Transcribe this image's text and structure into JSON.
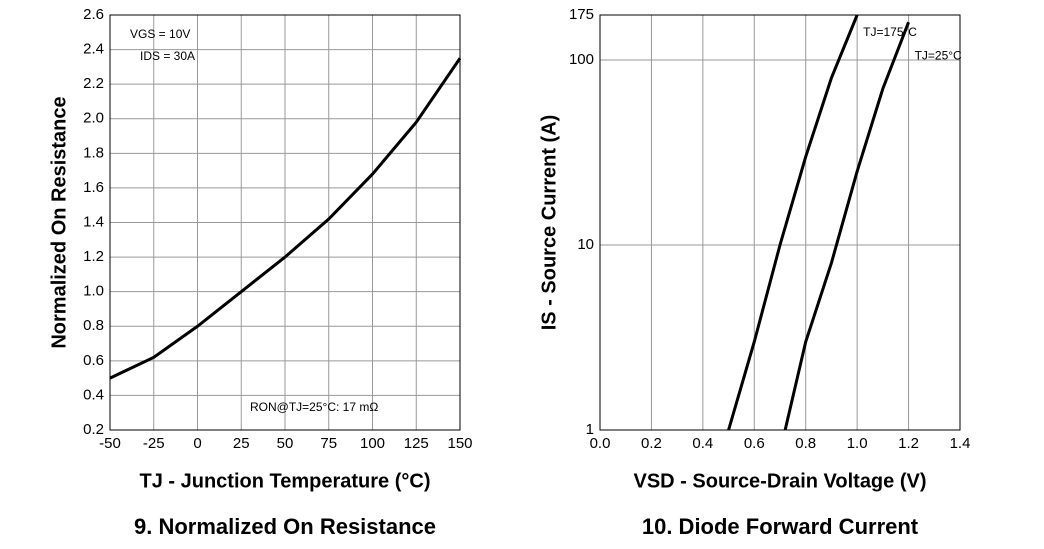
{
  "chart_data": [
    {
      "type": "line",
      "title": "9. Normalized On Resistance",
      "x_label": "TJ - Junction Temperature (°C)",
      "y_label": "Normalized On Resistance",
      "x": [
        -50,
        -25,
        0,
        25,
        50,
        75,
        100,
        125,
        150
      ],
      "series": [
        {
          "color": "#000000",
          "values": [
            0.5,
            0.62,
            0.8,
            1.0,
            1.2,
            1.42,
            1.68,
            1.98,
            2.35
          ]
        }
      ],
      "xlim": [
        -50,
        150
      ],
      "xticks": [
        -50,
        -25,
        0,
        25,
        50,
        75,
        100,
        125,
        150
      ],
      "ylim": [
        0.2,
        2.6
      ],
      "yticks": [
        0.2,
        0.4,
        0.6,
        0.8,
        {
          "value": 1.0,
          "label": "1.0"
        },
        1.2,
        1.4,
        1.6,
        1.8,
        {
          "value": 2.0,
          "label": "2.0"
        },
        2.2,
        2.4,
        2.6
      ],
      "grid": true,
      "log_y": false,
      "annotations": [
        "VGS = 10V",
        "IDS = 30A",
        "RON@TJ=25°C: 17 mΩ"
      ]
    },
    {
      "type": "line",
      "title": "10. Diode Forward Current",
      "x_label": "VSD - Source-Drain Voltage (V)",
      "y_label": "IS - Source Current (A)",
      "series": [
        {
          "name": "TJ=175°C",
          "color": "#000000",
          "x": [
            0.5,
            0.6,
            0.7,
            0.8,
            0.9,
            1.0
          ],
          "values": [
            1,
            3,
            10,
            30,
            80,
            175
          ]
        },
        {
          "name": "TJ=25°C",
          "color": "#000000",
          "x": [
            0.72,
            0.8,
            0.9,
            1.0,
            1.1,
            1.2
          ],
          "values": [
            1,
            3,
            8,
            25,
            70,
            160
          ]
        }
      ],
      "xlim": [
        0.0,
        1.4
      ],
      "xticks": [
        {
          "value": 0.0,
          "label": "0.0"
        },
        0.2,
        0.4,
        0.6,
        0.8,
        {
          "value": 1.0,
          "label": "1.0"
        },
        1.2,
        1.4
      ],
      "ylim": [
        1,
        175
      ],
      "yticks": [
        1,
        10,
        100,
        175
      ],
      "grid": true,
      "log_y": true
    }
  ]
}
